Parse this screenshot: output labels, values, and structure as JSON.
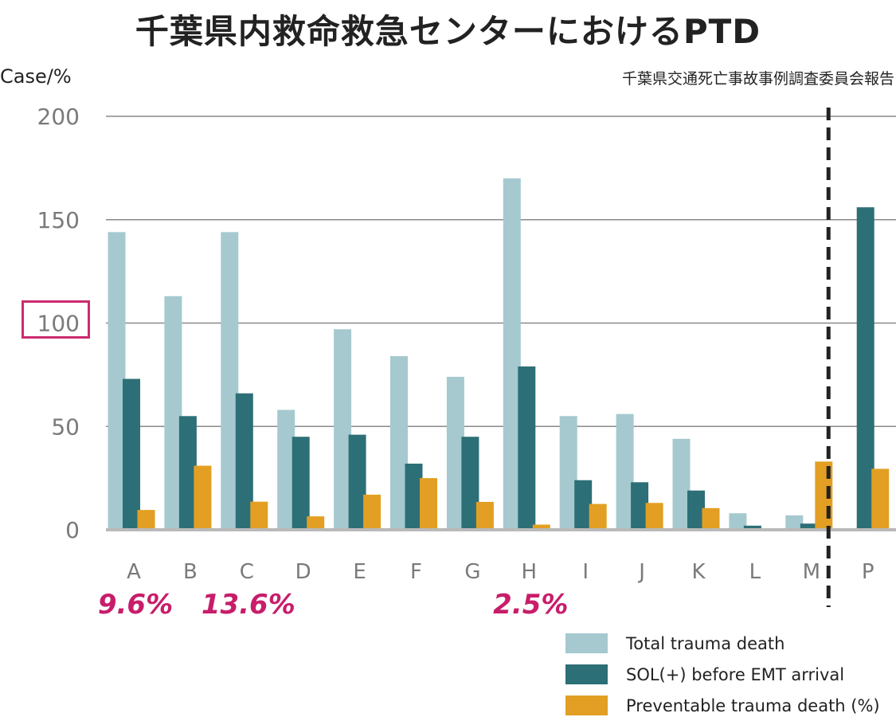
{
  "title": "千葉県内救命救急センターにおけるPTD",
  "source": "千葉県交通死亡事故事例調査委員会報告",
  "chart_data": {
    "type": "bar",
    "title": "千葉県内救命救急センターにおけるPTD",
    "ylabel": "Case/%",
    "ylim": [
      0,
      200
    ],
    "yticks": [
      0,
      50,
      100,
      150,
      200
    ],
    "highlighted_tick": 100,
    "categories": [
      "A",
      "B",
      "C",
      "D",
      "E",
      "F",
      "G",
      "H",
      "I",
      "J",
      "K",
      "L",
      "M",
      "P"
    ],
    "series": [
      {
        "name": "Total trauma death",
        "color": "#a5c9cf",
        "values": [
          144,
          113,
          144,
          58,
          97,
          84,
          74,
          170,
          55,
          56,
          44,
          8,
          7,
          null
        ]
      },
      {
        "name": "SOL(+) before EMT arrival",
        "color": "#2d6f76",
        "values": [
          73,
          55,
          66,
          45,
          46,
          32,
          45,
          79,
          24,
          23,
          19,
          2,
          3,
          156
        ]
      },
      {
        "name": "Preventable trauma death (%)",
        "color": "#e29f23",
        "values": [
          9.6,
          31,
          13.6,
          6.5,
          17,
          25,
          13.5,
          2.5,
          12.5,
          13,
          10.5,
          0,
          33,
          29.5
        ]
      }
    ],
    "divider_after": "M",
    "annotations": [
      {
        "category": "A",
        "text": "9.6%"
      },
      {
        "category": "C",
        "text": "13.6%"
      },
      {
        "category": "H",
        "text": "2.5%"
      }
    ],
    "annotation_color": "#c81d6a",
    "legend": [
      "Total trauma death",
      "SOL(+) before EMT arrival",
      "Preventable trauma death (%)"
    ]
  }
}
